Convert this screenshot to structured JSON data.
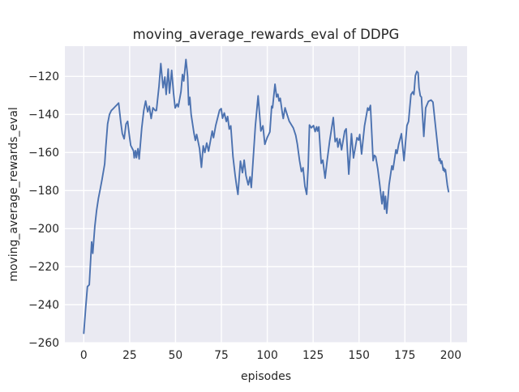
{
  "title": "moving_average_rewards_eval of DDPG",
  "chart_data": {
    "type": "line",
    "title": "moving_average_rewards_eval of DDPG",
    "xlabel": "episodes",
    "ylabel": "moving_average_rewards_eval",
    "xlim": [
      -10.3,
      208.9
    ],
    "ylim": [
      -259.9,
      -104.1
    ],
    "x_ticks": [
      0,
      25,
      50,
      75,
      100,
      125,
      150,
      175,
      200
    ],
    "y_ticks": [
      -120,
      -140,
      -160,
      -180,
      -200,
      -220,
      -240,
      -260
    ],
    "grid": true,
    "legend_position": "none",
    "style": "seaborn-darkgrid",
    "colors": {
      "line": "#4c72b0",
      "plot_background": "#eaeaf2",
      "grid": "#ffffff",
      "text": "#262626",
      "figure_background": "#ffffff"
    },
    "series": [
      {
        "name": "moving_average_rewards_eval",
        "x": [
          0,
          1,
          2,
          3,
          4.3,
          4.9,
          6,
          7,
          8,
          9,
          10,
          11.4,
          12,
          13,
          14,
          15,
          16,
          17,
          18,
          19,
          20.1,
          21,
          22,
          23,
          23.9,
          24.9,
          25.6,
          27.1,
          27.5,
          28.2,
          28.7,
          29.5,
          30.2,
          31.6,
          32.7,
          33.7,
          34.8,
          35.7,
          36.7,
          37.7,
          39,
          39.6,
          41,
          42,
          43.2,
          44.2,
          44.9,
          46,
          46.7,
          47.9,
          48.9,
          49.8,
          50.8,
          51.5,
          53,
          53.8,
          54.5,
          55.7,
          56.6,
          57.2,
          57.8,
          58.5,
          60.1,
          60.8,
          61.5,
          63.1,
          64.1,
          65.1,
          66,
          67,
          68,
          70,
          70.7,
          71.9,
          74,
          74.9,
          75.6,
          76.6,
          77.7,
          78.4,
          79.3,
          80.1,
          81.3,
          82.5,
          83.3,
          84,
          85.4,
          86.5,
          87.4,
          88.4,
          89.6,
          90.6,
          91.3,
          93.5,
          95,
          96.5,
          97.6,
          98.7,
          99.9,
          101.4,
          102.4,
          102.9,
          104.2,
          105.1,
          105.8,
          106.4,
          107.1,
          108.3,
          108.7,
          109.7,
          110.8,
          112,
          114.2,
          115.5,
          116.4,
          117.6,
          118.6,
          119.5,
          120.5,
          121.5,
          122.3,
          123,
          124,
          125.2,
          126.1,
          126.9,
          127.4,
          128.1,
          129.4,
          130.3,
          131.5,
          132.6,
          134,
          136,
          137,
          138,
          138.5,
          139.5,
          140.5,
          142.2,
          143,
          144.4,
          145.9,
          147,
          148.9,
          149.8,
          150.4,
          151.4,
          153,
          154.7,
          155.4,
          156.2,
          157.7,
          158.4,
          159.1,
          160.2,
          161.3,
          162.5,
          163.2,
          163.9,
          164.4,
          165.1,
          166.4,
          167.9,
          168.5,
          170.1,
          170.7,
          171.6,
          173.1,
          174.5,
          176.1,
          177,
          178.3,
          179.3,
          179.9,
          180.7,
          181.5,
          182.2,
          182.7,
          183.4,
          184,
          185.3,
          186.3,
          187.8,
          189.3,
          190.3,
          191.5,
          193,
          193.7,
          194.2,
          194.6,
          195.1,
          195.9,
          196.3,
          196.6,
          197.1,
          198.1,
          198.8
        ],
        "y": [
          -255,
          -242,
          -230.5,
          -229.5,
          -207,
          -213,
          -199,
          -190.5,
          -184,
          -179,
          -174,
          -166,
          -157,
          -145,
          -140,
          -138,
          -137,
          -136,
          -135,
          -134,
          -143.6,
          -150,
          -152.8,
          -145,
          -143.6,
          -151.4,
          -156.3,
          -159.1,
          -162.8,
          -159,
          -162.7,
          -158,
          -163.4,
          -147.1,
          -137.9,
          -132.9,
          -138.6,
          -135.7,
          -142.1,
          -136.5,
          -138,
          -137.9,
          -125,
          -113.2,
          -126,
          -120.3,
          -129.5,
          -116.1,
          -128.8,
          -116.8,
          -128.8,
          -136.6,
          -134.5,
          -136,
          -128,
          -119,
          -122.4,
          -111.1,
          -120,
          -135,
          -131,
          -140,
          -150.1,
          -153.6,
          -150.5,
          -158,
          -167.8,
          -156.5,
          -160,
          -155,
          -159.3,
          -148.7,
          -152.2,
          -145.8,
          -137.7,
          -136.9,
          -142,
          -139.2,
          -143.7,
          -141.1,
          -147.7,
          -146,
          -162.1,
          -172.1,
          -177.7,
          -182,
          -164.5,
          -170.6,
          -164,
          -172.1,
          -177,
          -172.8,
          -178.4,
          -146,
          -130.2,
          -148.7,
          -146,
          -155.7,
          -152.2,
          -149.2,
          -135.7,
          -136.5,
          -124.1,
          -130.8,
          -129.4,
          -132.9,
          -131.5,
          -140,
          -142.1,
          -136.5,
          -140,
          -143.6,
          -147.1,
          -151,
          -155.7,
          -164.3,
          -170,
          -168,
          -177.7,
          -182,
          -168,
          -145.5,
          -147,
          -145.8,
          -149,
          -146.5,
          -148.7,
          -146.5,
          -165.7,
          -164,
          -173.5,
          -164.3,
          -154,
          -141.6,
          -154.3,
          -152.5,
          -157.2,
          -152.9,
          -158.6,
          -148.7,
          -147.5,
          -171.4,
          -150.1,
          -162.9,
          -152.2,
          -153.5,
          -150.5,
          -160.8,
          -146,
          -136.6,
          -137.8,
          -135.2,
          -164.3,
          -161.5,
          -162.2,
          -168.5,
          -177,
          -187,
          -180.6,
          -189.8,
          -183,
          -191.9,
          -177,
          -167,
          -169,
          -158.6,
          -160.5,
          -155.7,
          -150.1,
          -164.3,
          -145.8,
          -143.7,
          -129.5,
          -128.1,
          -129.5,
          -119.6,
          -117.4,
          -118.1,
          -126,
          -130.2,
          -130.9,
          -151.5,
          -136.6,
          -133.1,
          -132.4,
          -133.5,
          -144.4,
          -157.9,
          -164.3,
          -163.3,
          -165.7,
          -164.5,
          -169.3,
          -168.2,
          -170,
          -169,
          -177,
          -180.6
        ]
      }
    ]
  }
}
